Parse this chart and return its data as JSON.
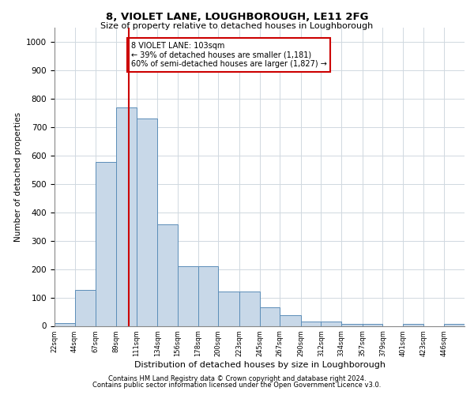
{
  "title_line1": "8, VIOLET LANE, LOUGHBOROUGH, LE11 2FG",
  "title_line2": "Size of property relative to detached houses in Loughborough",
  "xlabel": "Distribution of detached houses by size in Loughborough",
  "ylabel": "Number of detached properties",
  "footnote1": "Contains HM Land Registry data © Crown copyright and database right 2024.",
  "footnote2": "Contains public sector information licensed under the Open Government Licence v3.0.",
  "bar_color": "#c8d8e8",
  "bar_edge_color": "#5b8db8",
  "grid_color": "#d0d8e0",
  "annotation_box_color": "#cc0000",
  "vline_color": "#cc0000",
  "annotation_text": "8 VIOLET LANE: 103sqm\n← 39% of detached houses are smaller (1,181)\n60% of semi-detached houses are larger (1,827) →",
  "property_sqm": 103,
  "bin_edges": [
    22,
    44,
    67,
    89,
    111,
    134,
    156,
    178,
    200,
    223,
    245,
    267,
    290,
    312,
    334,
    357,
    379,
    401,
    423,
    446,
    468
  ],
  "heights": [
    10,
    127,
    578,
    770,
    730,
    357,
    210,
    210,
    120,
    120,
    65,
    37,
    15,
    15,
    7,
    7,
    0,
    7,
    0,
    7
  ],
  "ylim": [
    0,
    1050
  ],
  "yticks": [
    0,
    100,
    200,
    300,
    400,
    500,
    600,
    700,
    800,
    900,
    1000
  ]
}
